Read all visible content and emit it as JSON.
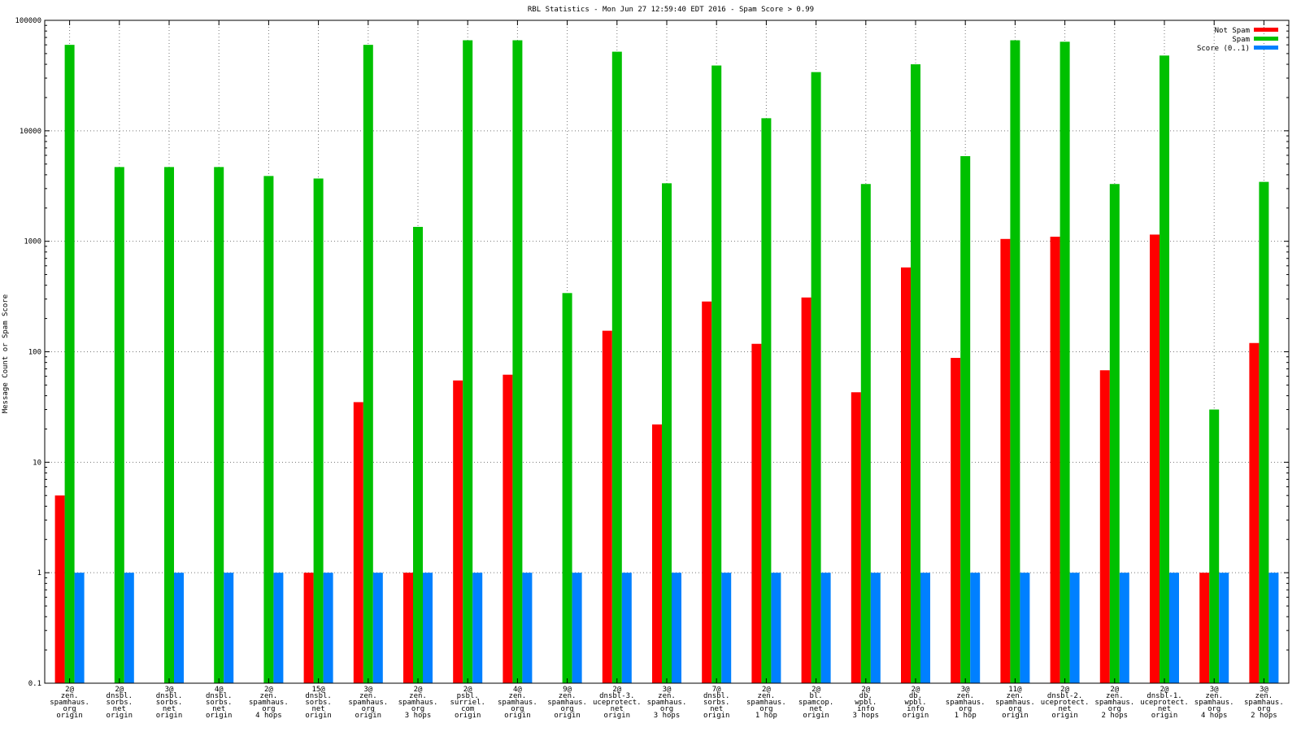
{
  "chart_data": {
    "type": "bar",
    "title": "RBL Statistics - Mon Jun 27 12:59:40 EDT 2016 - Spam Score > 0.99",
    "ylabel": "Message Count or Spam Score",
    "xlabel": "",
    "yscale": "log",
    "ylim": [
      0.1,
      100000
    ],
    "yticks": [
      {
        "value": 0.1,
        "label": "0.1"
      },
      {
        "value": 1,
        "label": "1"
      },
      {
        "value": 10,
        "label": "10"
      },
      {
        "value": 100,
        "label": "100"
      },
      {
        "value": 1000,
        "label": "1000"
      },
      {
        "value": 10000,
        "label": "10000"
      },
      {
        "value": 100000,
        "label": "100000"
      }
    ],
    "grid": true,
    "legend_position": "top-right",
    "categories": [
      [
        "2@",
        "zen.",
        "spamhaus.",
        "org",
        "origin"
      ],
      [
        "2@",
        "dnsbl.",
        "sorbs.",
        "net",
        "origin"
      ],
      [
        "3@",
        "dnsbl.",
        "sorbs.",
        "net",
        "origin"
      ],
      [
        "4@",
        "dnsbl.",
        "sorbs.",
        "net",
        "origin"
      ],
      [
        "2@",
        "zen.",
        "spamhaus.",
        "org",
        "4 hops"
      ],
      [
        "15@",
        "dnsbl.",
        "sorbs.",
        "net",
        "origin"
      ],
      [
        "3@",
        "zen.",
        "spamhaus.",
        "org",
        "origin"
      ],
      [
        "2@",
        "zen.",
        "spamhaus.",
        "org",
        "3 hops"
      ],
      [
        "2@",
        "psbl.",
        "surriel.",
        "com",
        "origin"
      ],
      [
        "4@",
        "zen.",
        "spamhaus.",
        "org",
        "origin"
      ],
      [
        "9@",
        "zen.",
        "spamhaus.",
        "org",
        "origin"
      ],
      [
        "2@",
        "dnsbl-3.",
        "uceprotect.",
        "net",
        "origin"
      ],
      [
        "3@",
        "zen.",
        "spamhaus.",
        "org",
        "3 hops"
      ],
      [
        "7@",
        "dnsbl.",
        "sorbs.",
        "net",
        "origin"
      ],
      [
        "2@",
        "zen.",
        "spamhaus.",
        "org",
        "1 hop"
      ],
      [
        "2@",
        "bl.",
        "spamcop.",
        "net",
        "origin"
      ],
      [
        "2@",
        "db.",
        "wpbl.",
        "info",
        "3 hops"
      ],
      [
        "2@",
        "db.",
        "wpbl.",
        "info",
        "origin"
      ],
      [
        "3@",
        "zen.",
        "spamhaus.",
        "org",
        "1 hop"
      ],
      [
        "11@",
        "zen.",
        "spamhaus.",
        "org",
        "origin"
      ],
      [
        "2@",
        "dnsbl-2.",
        "uceprotect.",
        "net",
        "origin"
      ],
      [
        "2@",
        "zen.",
        "spamhaus.",
        "org",
        "2 hops"
      ],
      [
        "2@",
        "dnsbl-1.",
        "uceprotect.",
        "net",
        "origin"
      ],
      [
        "3@",
        "zen.",
        "spamhaus.",
        "org",
        "4 hops"
      ],
      [
        "3@",
        "zen.",
        "spamhaus.",
        "org",
        "2 hops"
      ]
    ],
    "series": [
      {
        "name": "Not Spam",
        "color": "#ff0000",
        "values": [
          5,
          null,
          null,
          null,
          null,
          1,
          35,
          1,
          55,
          62,
          null,
          155,
          22,
          285,
          118,
          310,
          43,
          580,
          88,
          1050,
          1100,
          68,
          1150,
          1,
          120
        ]
      },
      {
        "name": "Spam",
        "color": "#00c000",
        "values": [
          60000,
          4700,
          4700,
          4700,
          3900,
          3700,
          60000,
          1350,
          66000,
          66000,
          340,
          52000,
          3350,
          39000,
          13000,
          34000,
          3300,
          40000,
          5900,
          66000,
          64000,
          3300,
          48000,
          30,
          3450
        ]
      },
      {
        "name": "Score (0..1)",
        "color": "#0080ff",
        "values": [
          1,
          1,
          1,
          1,
          1,
          1,
          1,
          1,
          1,
          1,
          1,
          1,
          1,
          1,
          1,
          1,
          1,
          1,
          1,
          1,
          1,
          1,
          1,
          1,
          1
        ]
      }
    ]
  }
}
